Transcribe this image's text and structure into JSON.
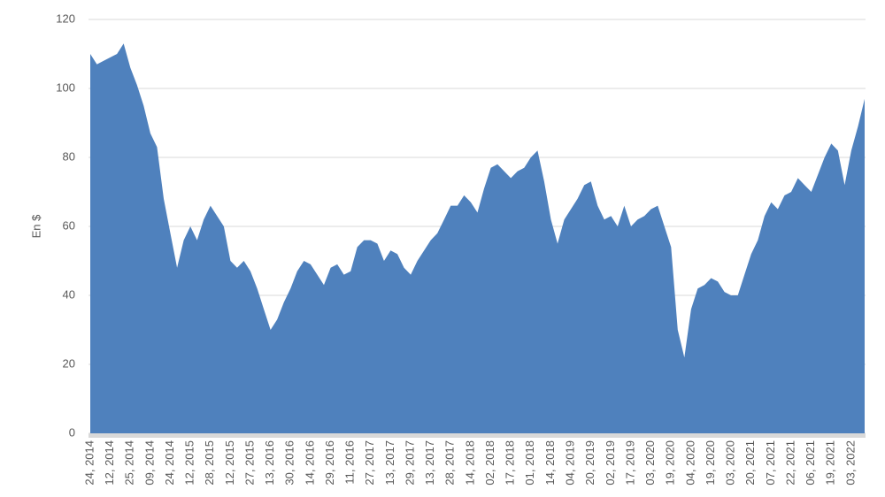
{
  "chart_data": {
    "type": "area",
    "y_label": "En $",
    "color": "#4f81bd",
    "ylim": [
      0,
      120
    ],
    "yticks": [
      0,
      20,
      40,
      60,
      80,
      100,
      120
    ],
    "grid": true,
    "categories": [
      "24, 2014",
      null,
      null,
      "12, 2014",
      null,
      null,
      "25, 2014",
      null,
      null,
      "09, 2014",
      null,
      null,
      "24, 2014",
      null,
      null,
      "12, 2015",
      null,
      null,
      "28, 2015",
      null,
      null,
      "12, 2015",
      null,
      null,
      "27, 2015",
      null,
      null,
      "13, 2016",
      null,
      null,
      "30, 2016",
      null,
      null,
      "14, 2016",
      null,
      null,
      "29, 2016",
      null,
      null,
      "11, 2016",
      null,
      null,
      "27, 2017",
      null,
      null,
      "13, 2017",
      null,
      null,
      "29, 2017",
      null,
      null,
      "13, 2017",
      null,
      null,
      "28, 2017",
      null,
      null,
      "14, 2018",
      null,
      null,
      "02, 2018",
      null,
      null,
      "17, 2018",
      null,
      null,
      "01, 2018",
      null,
      null,
      "14, 2018",
      null,
      null,
      "04, 2019",
      null,
      null,
      "20, 2019",
      null,
      null,
      "02, 2019",
      null,
      null,
      "17, 2019",
      null,
      null,
      "03, 2020",
      null,
      null,
      "19, 2020",
      null,
      null,
      "04, 2020",
      null,
      null,
      "19, 2020",
      null,
      null,
      "03, 2020",
      null,
      null,
      "20, 2021",
      null,
      null,
      "07, 2021",
      null,
      null,
      "22, 2021",
      null,
      null,
      "06, 2021",
      null,
      null,
      "19, 2021",
      null,
      null,
      "03, 2022",
      null,
      null
    ],
    "values": [
      110,
      107,
      108,
      109,
      110,
      113,
      106,
      101,
      95,
      87,
      83,
      68,
      58,
      48,
      56,
      60,
      56,
      62,
      66,
      63,
      60,
      50,
      48,
      50,
      47,
      42,
      36,
      30,
      33,
      38,
      42,
      47,
      50,
      49,
      46,
      43,
      48,
      49,
      46,
      47,
      54,
      56,
      56,
      55,
      50,
      53,
      52,
      48,
      46,
      50,
      53,
      56,
      58,
      62,
      66,
      66,
      69,
      67,
      64,
      71,
      77,
      78,
      76,
      74,
      76,
      77,
      80,
      82,
      73,
      62,
      55,
      62,
      65,
      68,
      72,
      73,
      66,
      62,
      63,
      60,
      66,
      60,
      62,
      63,
      65,
      66,
      60,
      54,
      30,
      22,
      36,
      42,
      43,
      45,
      44,
      41,
      40,
      40,
      46,
      52,
      56,
      63,
      67,
      65,
      69,
      70,
      74,
      72,
      70,
      75,
      80,
      84,
      82,
      72,
      82,
      89,
      97
    ]
  }
}
